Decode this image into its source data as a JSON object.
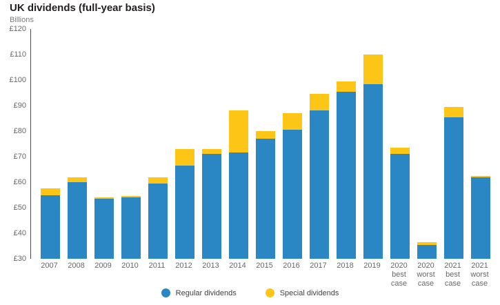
{
  "header": {
    "title": "UK dividends (full-year basis)",
    "subtitle": "Billions"
  },
  "colors": {
    "regular_blue": "#2b86c4",
    "special_yellow": "#fdc516",
    "axis_line": "#4a4a4a",
    "tick_text": "#666666",
    "title_text": "#231f20",
    "subtitle_text": "#7b7b7b",
    "legend_text": "#404040"
  },
  "chart_data": {
    "type": "bar",
    "stacked": true,
    "title": "UK dividends (full-year basis)",
    "ylabel": "Billions",
    "ylim": [
      30,
      120
    ],
    "ytick_step": 10,
    "y_ticks": [
      "£120",
      "£110",
      "£100",
      "£90",
      "£80",
      "£70",
      "£60",
      "£50",
      "£40",
      "£30"
    ],
    "grid": false,
    "legend_position": "bottom-center",
    "categories": [
      "2007",
      "2008",
      "2009",
      "2010",
      "2011",
      "2012",
      "2013",
      "2014",
      "2015",
      "2016",
      "2017",
      "2018",
      "2019",
      "2020 best case",
      "2020 worst case",
      "2021 best case",
      "2021 worst case"
    ],
    "category_lines": [
      [
        "2007"
      ],
      [
        "2008"
      ],
      [
        "2009"
      ],
      [
        "2010"
      ],
      [
        "2011"
      ],
      [
        "2012"
      ],
      [
        "2013"
      ],
      [
        "2014"
      ],
      [
        "2015"
      ],
      [
        "2016"
      ],
      [
        "2017"
      ],
      [
        "2018"
      ],
      [
        "2019"
      ],
      [
        "2020",
        "best",
        "case"
      ],
      [
        "2020",
        "worst",
        "case"
      ],
      [
        "2021",
        "best",
        "case"
      ],
      [
        "2021",
        "worst",
        "case"
      ]
    ],
    "series": [
      {
        "name": "Regular dividends",
        "color": "#2b86c4",
        "values": [
          55,
          60,
          53.5,
          54,
          59.5,
          66.5,
          71,
          71.5,
          77,
          80.5,
          88,
          95.5,
          98.5,
          71,
          35.5,
          85.5,
          62
        ]
      },
      {
        "name": "Special dividends",
        "color": "#fdc516",
        "values": [
          2.5,
          2,
          0.5,
          0.5,
          2.5,
          6.5,
          2,
          16.5,
          3,
          6.5,
          6.5,
          4,
          11.5,
          2.5,
          1,
          4,
          0.5
        ]
      }
    ],
    "totals": [
      57.5,
      62,
      54,
      54.5,
      62,
      73,
      73,
      88,
      80,
      87,
      94.5,
      99.5,
      110,
      73.5,
      36.5,
      89.5,
      62.5
    ]
  }
}
